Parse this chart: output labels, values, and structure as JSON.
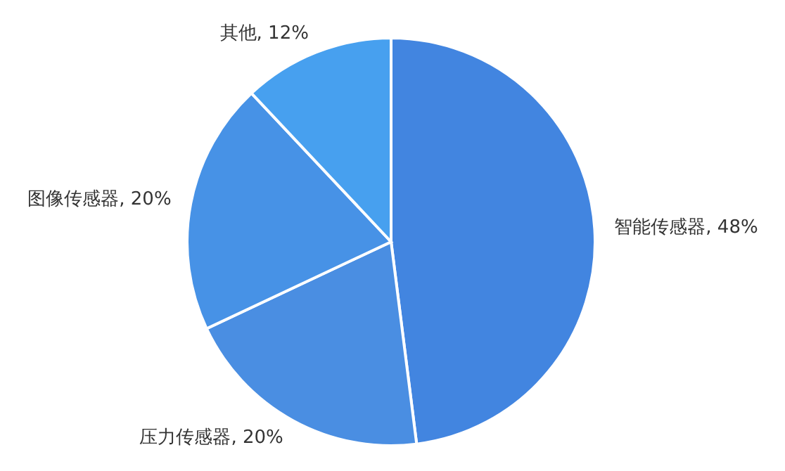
{
  "chart_data": {
    "type": "pie",
    "categories": [
      "智能传感器",
      "压力传感器",
      "图像传感器",
      "其他"
    ],
    "values": [
      48,
      20,
      20,
      12
    ],
    "value_labels": [
      "48%",
      "20%",
      "20%",
      "12%"
    ],
    "colors": [
      "#4285e0",
      "#4a8ee2",
      "#4792e6",
      "#47a0ef"
    ]
  }
}
